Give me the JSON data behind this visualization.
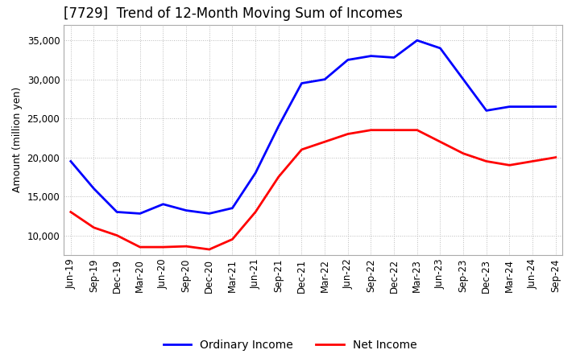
{
  "title": "[7729]  Trend of 12-Month Moving Sum of Incomes",
  "ylabel": "Amount (million yen)",
  "ylim": [
    7500,
    37000
  ],
  "yticks": [
    10000,
    15000,
    20000,
    25000,
    30000,
    35000
  ],
  "line_colors": [
    "#0000ff",
    "#ff0000"
  ],
  "line_labels": [
    "Ordinary Income",
    "Net Income"
  ],
  "x_labels": [
    "Jun-19",
    "Sep-19",
    "Dec-19",
    "Mar-20",
    "Jun-20",
    "Sep-20",
    "Dec-20",
    "Mar-21",
    "Jun-21",
    "Sep-21",
    "Dec-21",
    "Mar-22",
    "Jun-22",
    "Sep-22",
    "Dec-22",
    "Mar-23",
    "Jun-23",
    "Sep-23",
    "Dec-23",
    "Mar-24",
    "Jun-24",
    "Sep-24"
  ],
  "ordinary_income": [
    19500,
    16000,
    13000,
    12800,
    14000,
    13200,
    12800,
    13500,
    18000,
    24000,
    29500,
    30000,
    32500,
    33000,
    32800,
    35000,
    34000,
    30000,
    26000,
    26500,
    26500,
    26500
  ],
  "net_income": [
    13000,
    11000,
    10000,
    8500,
    8500,
    8600,
    8200,
    9500,
    13000,
    17500,
    21000,
    22000,
    23000,
    23500,
    23500,
    23500,
    22000,
    20500,
    19500,
    19000,
    19500,
    20000
  ],
  "background_color": "#ffffff",
  "grid_color": "#bbbbbb",
  "title_fontsize": 12,
  "axis_fontsize": 8.5,
  "legend_fontsize": 10
}
